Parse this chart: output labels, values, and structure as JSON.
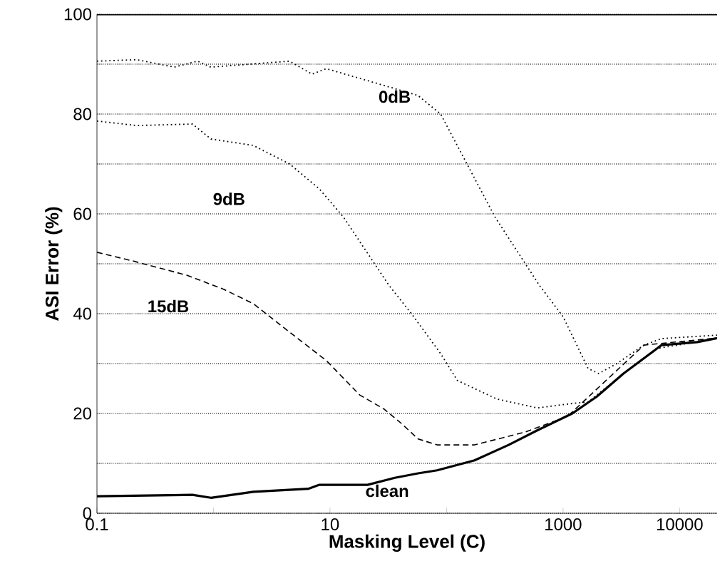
{
  "chart_data": {
    "type": "line",
    "xlabel": "Masking Level (C)",
    "ylabel": "ASI Error (%)",
    "log": "x",
    "xlim": [
      0.1,
      21000
    ],
    "xticks": [
      0.1,
      {
        "value": 1,
        "label": null
      },
      10,
      {
        "value": 100,
        "label": null
      },
      1000,
      10000
    ],
    "ylim": [
      0,
      100
    ],
    "yticks": [
      0,
      {
        "value": 10,
        "label": null
      },
      20,
      {
        "value": 30,
        "label": null
      },
      40,
      {
        "value": 50,
        "label": null
      },
      60,
      {
        "value": 70,
        "label": null
      },
      80,
      {
        "value": 90,
        "label": null
      },
      100
    ],
    "grid": "y",
    "marker": "none",
    "series": [
      {
        "color": "#000000",
        "line_style": "dotted",
        "x": [
          0.1,
          0.22,
          0.46,
          0.73,
          0.95,
          4.5,
          7,
          9.3,
          36,
          57,
          89,
          260,
          625,
          1000,
          1640,
          2020,
          2900,
          4950,
          7000,
          21000
        ],
        "values": [
          90.6,
          90.9,
          89.4,
          90.6,
          89.4,
          90.6,
          88,
          89.1,
          85.1,
          83.7,
          80,
          59.4,
          45.7,
          39.4,
          29,
          28,
          30,
          33.7,
          35,
          35.7
        ]
      },
      {
        "color": "#000000",
        "line_style": "dotted",
        "x": [
          0.1,
          0.22,
          0.66,
          0.95,
          2.2,
          4.5,
          8.1,
          13,
          32,
          50,
          89,
          124,
          270,
          600,
          1200,
          1640,
          3300,
          6300,
          21000
        ],
        "values": [
          78.6,
          77.7,
          78,
          75,
          73.7,
          70,
          65,
          59.4,
          45.7,
          40,
          32,
          26.6,
          22.9,
          21.1,
          22,
          22.3,
          28,
          33,
          35
        ]
      },
      {
        "color": "#000000",
        "line_style": "dashed",
        "x": [
          0.1,
          0.2,
          0.59,
          1.22,
          2.2,
          4.5,
          9.3,
          18,
          29,
          41,
          57,
          83,
          174,
          478,
          1090,
          4950,
          21000
        ],
        "values": [
          52.3,
          50.6,
          47.7,
          44.9,
          42,
          36.3,
          30.6,
          23.7,
          20.9,
          18,
          14.9,
          13.7,
          13.7,
          16.3,
          19.4,
          33.7,
          35.1
        ]
      },
      {
        "color": "#000000",
        "line_style": "solid",
        "x": [
          0.1,
          0.66,
          0.95,
          2.2,
          6.5,
          8.1,
          21,
          36,
          57,
          83,
          174,
          341,
          600,
          1200,
          1950,
          3300,
          6300,
          7000,
          14200,
          21000
        ],
        "values": [
          3.4,
          3.7,
          3.1,
          4.3,
          4.9,
          5.7,
          5.7,
          7.1,
          8,
          8.6,
          10.6,
          13.7,
          16.6,
          20,
          23.4,
          28,
          32.9,
          33.7,
          34.3,
          35.1
        ]
      }
    ],
    "annotations": [
      "0dB",
      "9dB",
      "15dB",
      "clean"
    ]
  }
}
